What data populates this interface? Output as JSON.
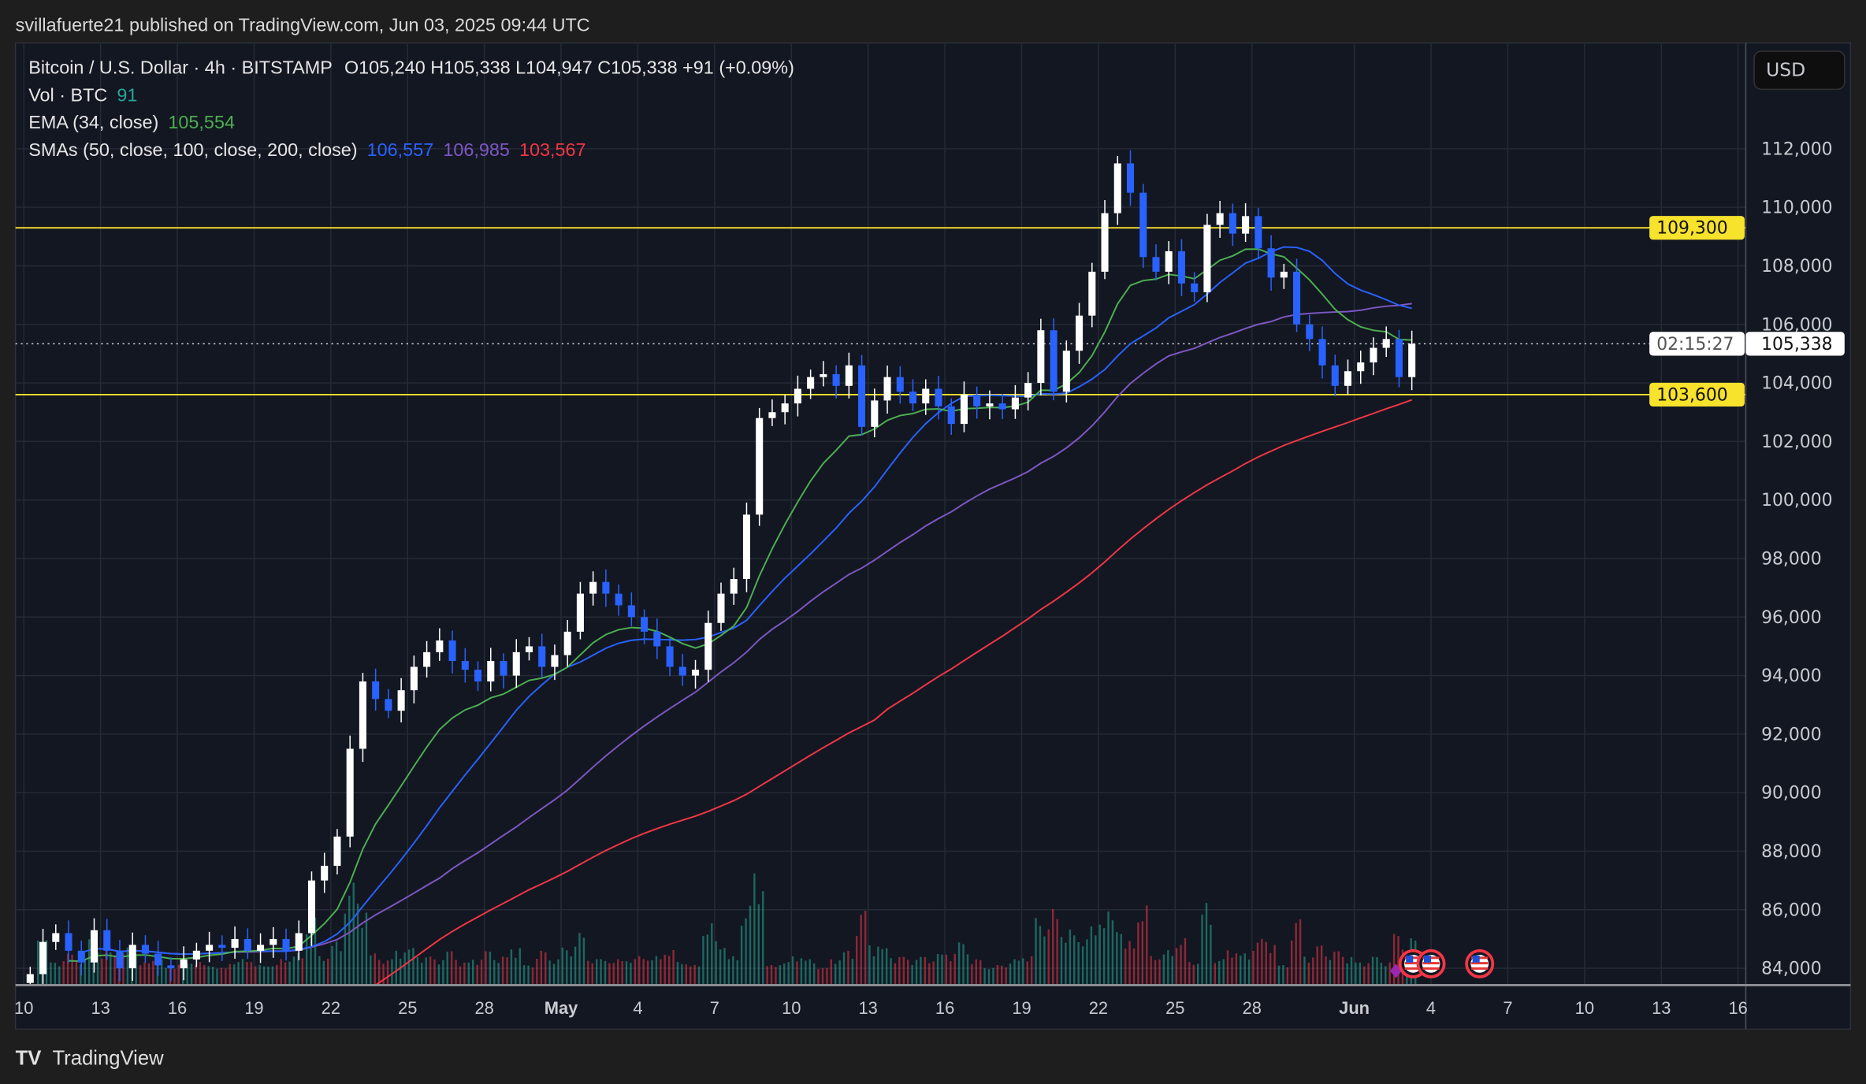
{
  "header": {
    "published": "svillafuerte21 published on TradingView.com, Jun 03, 2025 09:44 UTC"
  },
  "legend": {
    "symbol": "Bitcoin / U.S. Dollar · 4h · BITSTAMP",
    "ohlc": "O105,240  H105,338  L104,947  C105,338  +91 (+0.09%)",
    "vol_label": "Vol · BTC",
    "vol_value": "91",
    "ema_label": "EMA (34, close)",
    "ema_value": "105,554",
    "sma_label": "SMAs (50, close, 100, close, 200, close)",
    "sma50_value": "106,557",
    "sma100_value": "106,985",
    "sma200_value": "103,567"
  },
  "price_axis": {
    "currency": "USD",
    "last_price": "105,338",
    "countdown": "02:15:27",
    "levels": [
      {
        "label": "109,300",
        "value": 109300
      },
      {
        "label": "103,600",
        "value": 103600
      }
    ]
  },
  "footer": {
    "brand": "TradingView"
  },
  "colors": {
    "background": "#131722",
    "up": "#ffffff",
    "down": "#2962ff",
    "ema": "#4caf50",
    "sma50": "#2962ff",
    "sma100": "#7e57c2",
    "sma200": "#f23645",
    "level": "#f7e22c",
    "vol_up": "#22ab94",
    "vol_down": "#f23645"
  },
  "chart_data": {
    "type": "candlestick",
    "ylim": [
      83700,
      113000
    ],
    "yticks": [
      84000,
      86000,
      88000,
      90000,
      92000,
      94000,
      96000,
      98000,
      100000,
      102000,
      104000,
      106000,
      108000,
      110000,
      112000
    ],
    "ytick_labels": [
      "84,000",
      "86,000",
      "88,000",
      "90,000",
      "92,000",
      "94,000",
      "96,000",
      "98,000",
      "100,000",
      "102,000",
      "104,000",
      "106,000",
      "108,000",
      "110,000",
      "112,000"
    ],
    "xticks_days_from_apr10": [
      0,
      3,
      6,
      9,
      12,
      15,
      18,
      21,
      24,
      27,
      30,
      33,
      36,
      39,
      42,
      45,
      48,
      52,
      55,
      58,
      61,
      64,
      67
    ],
    "xtick_labels": [
      "10",
      "13",
      "16",
      "19",
      "22",
      "25",
      "28",
      "May",
      "4",
      "7",
      "10",
      "13",
      "16",
      "19",
      "22",
      "25",
      "28",
      "Jun",
      "4",
      "7",
      "10",
      "13",
      "16"
    ],
    "series_start": "2025-04-10",
    "interval": "12h",
    "closes": [
      83800,
      84900,
      85200,
      84600,
      84200,
      85300,
      84600,
      84000,
      84800,
      84500,
      84100,
      84000,
      84300,
      84600,
      84800,
      84700,
      85000,
      84600,
      84800,
      85000,
      84600,
      85200,
      87000,
      87500,
      88500,
      91500,
      93800,
      93200,
      92800,
      93500,
      94300,
      94800,
      95200,
      94500,
      94200,
      93800,
      94500,
      94000,
      94800,
      95000,
      94300,
      94700,
      95500,
      96800,
      97200,
      96800,
      96400,
      96000,
      95500,
      95000,
      94300,
      94000,
      94200,
      95800,
      96800,
      97300,
      99500,
      102800,
      103000,
      103300,
      103800,
      104200,
      104300,
      103900,
      104600,
      102500,
      103400,
      104200,
      103700,
      103300,
      103800,
      103200,
      102600,
      103600,
      103200,
      103300,
      103100,
      103500,
      104000,
      105800,
      103700,
      105100,
      106300,
      107800,
      109800,
      111500,
      110500,
      108300,
      107800,
      108500,
      107400,
      107100,
      109400,
      109800,
      109100,
      109700,
      108600,
      107600,
      107800,
      106000,
      105500,
      104600,
      103900,
      104400,
      104700,
      105200,
      105500,
      104200,
      105338
    ],
    "horizontal_levels": [
      109300,
      103600
    ],
    "last_price": 105338,
    "events_days_from_apr10": [
      54.3,
      55.0,
      56.9
    ]
  }
}
